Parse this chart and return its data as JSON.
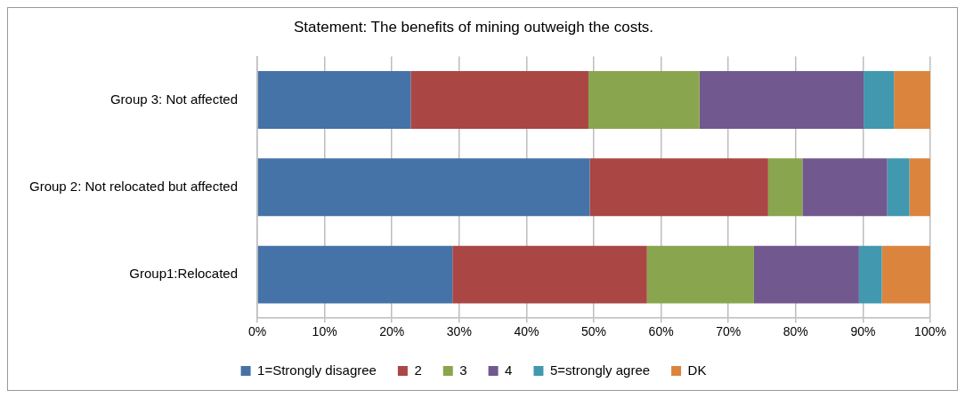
{
  "chart_data": {
    "type": "bar",
    "orientation": "horizontal",
    "stacked": true,
    "title": "Statement: The benefits of mining outweigh the costs.",
    "categories": [
      "Group 3: Not affected",
      "Group 2: Not relocated but affected",
      "Group1:Relocated"
    ],
    "series": [
      {
        "name": "1=Strongly disagree",
        "color": "#4572a7",
        "values": [
          22.8,
          49.4,
          29.0
        ]
      },
      {
        "name": "2",
        "color": "#aa4643",
        "values": [
          26.4,
          26.5,
          28.9
        ]
      },
      {
        "name": "3",
        "color": "#89a54e",
        "values": [
          16.5,
          5.1,
          15.9
        ]
      },
      {
        "name": "4",
        "color": "#71588f",
        "values": [
          24.4,
          12.6,
          15.6
        ]
      },
      {
        "name": "5=strongly agree",
        "color": "#4198af",
        "values": [
          4.5,
          3.3,
          3.4
        ]
      },
      {
        "name": "DK",
        "color": "#db843d",
        "values": [
          5.4,
          3.1,
          7.2
        ]
      }
    ],
    "xlim": [
      0,
      100
    ],
    "xticks": [
      {
        "value": 0,
        "label": "0%"
      },
      {
        "value": 10,
        "label": "10%"
      },
      {
        "value": 20,
        "label": "20%"
      },
      {
        "value": 30,
        "label": "30%"
      },
      {
        "value": 40,
        "label": "40%"
      },
      {
        "value": 50,
        "label": "50%"
      },
      {
        "value": 60,
        "label": "60%"
      },
      {
        "value": 70,
        "label": "70%"
      },
      {
        "value": 80,
        "label": "80%"
      },
      {
        "value": 90,
        "label": "90%"
      },
      {
        "value": 100,
        "label": "100%"
      }
    ],
    "grid": "x",
    "legend": "bottom"
  }
}
